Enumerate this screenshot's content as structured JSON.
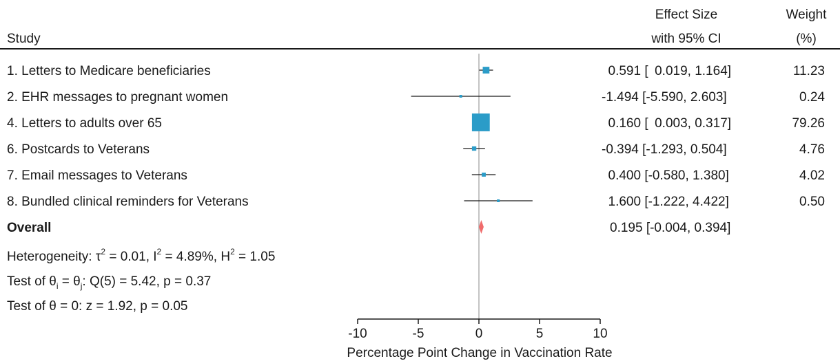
{
  "chart_data": {
    "type": "forest",
    "headers": {
      "study": "Study",
      "effect_line1": "Effect Size",
      "effect_line2": "with 95% CI",
      "weight_line1": "Weight",
      "weight_line2": "(%)"
    },
    "studies": [
      {
        "label": "1. Letters to Medicare beneficiaries",
        "es": 0.591,
        "lo": 0.019,
        "hi": 1.164,
        "weight": 11.23,
        "es_text": "0.591",
        "lo_text": "0.019",
        "hi_text": "1.164",
        "weight_text": "11.23"
      },
      {
        "label": "2. EHR messages to pregnant women",
        "es": -1.494,
        "lo": -5.59,
        "hi": 2.603,
        "weight": 0.24,
        "es_text": "-1.494",
        "lo_text": "-5.590",
        "hi_text": "2.603",
        "weight_text": "0.24"
      },
      {
        "label": "4. Letters to adults over 65",
        "es": 0.16,
        "lo": 0.003,
        "hi": 0.317,
        "weight": 79.26,
        "es_text": "0.160",
        "lo_text": "0.003",
        "hi_text": "0.317",
        "weight_text": "79.26"
      },
      {
        "label": "6. Postcards to Veterans",
        "es": -0.394,
        "lo": -1.293,
        "hi": 0.504,
        "weight": 4.76,
        "es_text": "-0.394",
        "lo_text": "-1.293",
        "hi_text": "0.504",
        "weight_text": "4.76"
      },
      {
        "label": "7. Email messages to Veterans",
        "es": 0.4,
        "lo": -0.58,
        "hi": 1.38,
        "weight": 4.02,
        "es_text": "0.400",
        "lo_text": "-0.580",
        "hi_text": "1.380",
        "weight_text": "4.02"
      },
      {
        "label": "8. Bundled clinical reminders for Veterans",
        "es": 1.6,
        "lo": -1.222,
        "hi": 4.422,
        "weight": 0.5,
        "es_text": "1.600",
        "lo_text": "-1.222",
        "hi_text": "4.422",
        "weight_text": "0.50"
      }
    ],
    "overall": {
      "label": "Overall",
      "es": 0.195,
      "lo": -0.004,
      "hi": 0.394,
      "es_text": "0.195",
      "lo_text": "-0.004",
      "hi_text": "0.394"
    },
    "stats": {
      "heterogeneity": {
        "prefix": "Heterogeneity: ",
        "tau2_sym": "τ",
        "tau2_val": " = 0.01, ",
        "i2_sym": "I",
        "i2_val": " = 4.89%, ",
        "h2_sym": "H",
        "h2_val": " = 1.05",
        "exp": "2"
      },
      "test_equal": {
        "prefix": "Test of ",
        "theta": "θ",
        "sub_i": "i",
        "mid": " = ",
        "sub_j": "j",
        "suffix": ": Q(5) = 5.42, p = 0.37"
      },
      "test_zero": "Test of θ = 0: z = 1.92, p = 0.05"
    },
    "x_axis": {
      "label": "Percentage Point Change in Vaccination Rate",
      "ticks": [
        -10,
        -5,
        0,
        5,
        10
      ],
      "range": [
        -10,
        10
      ]
    },
    "colors": {
      "square": "#2b9cc8",
      "diamond": "#f06b6b",
      "ci_line": "#1a1a1a",
      "null_line": "#b0b0b0",
      "axis": "#1a1a1a"
    }
  }
}
